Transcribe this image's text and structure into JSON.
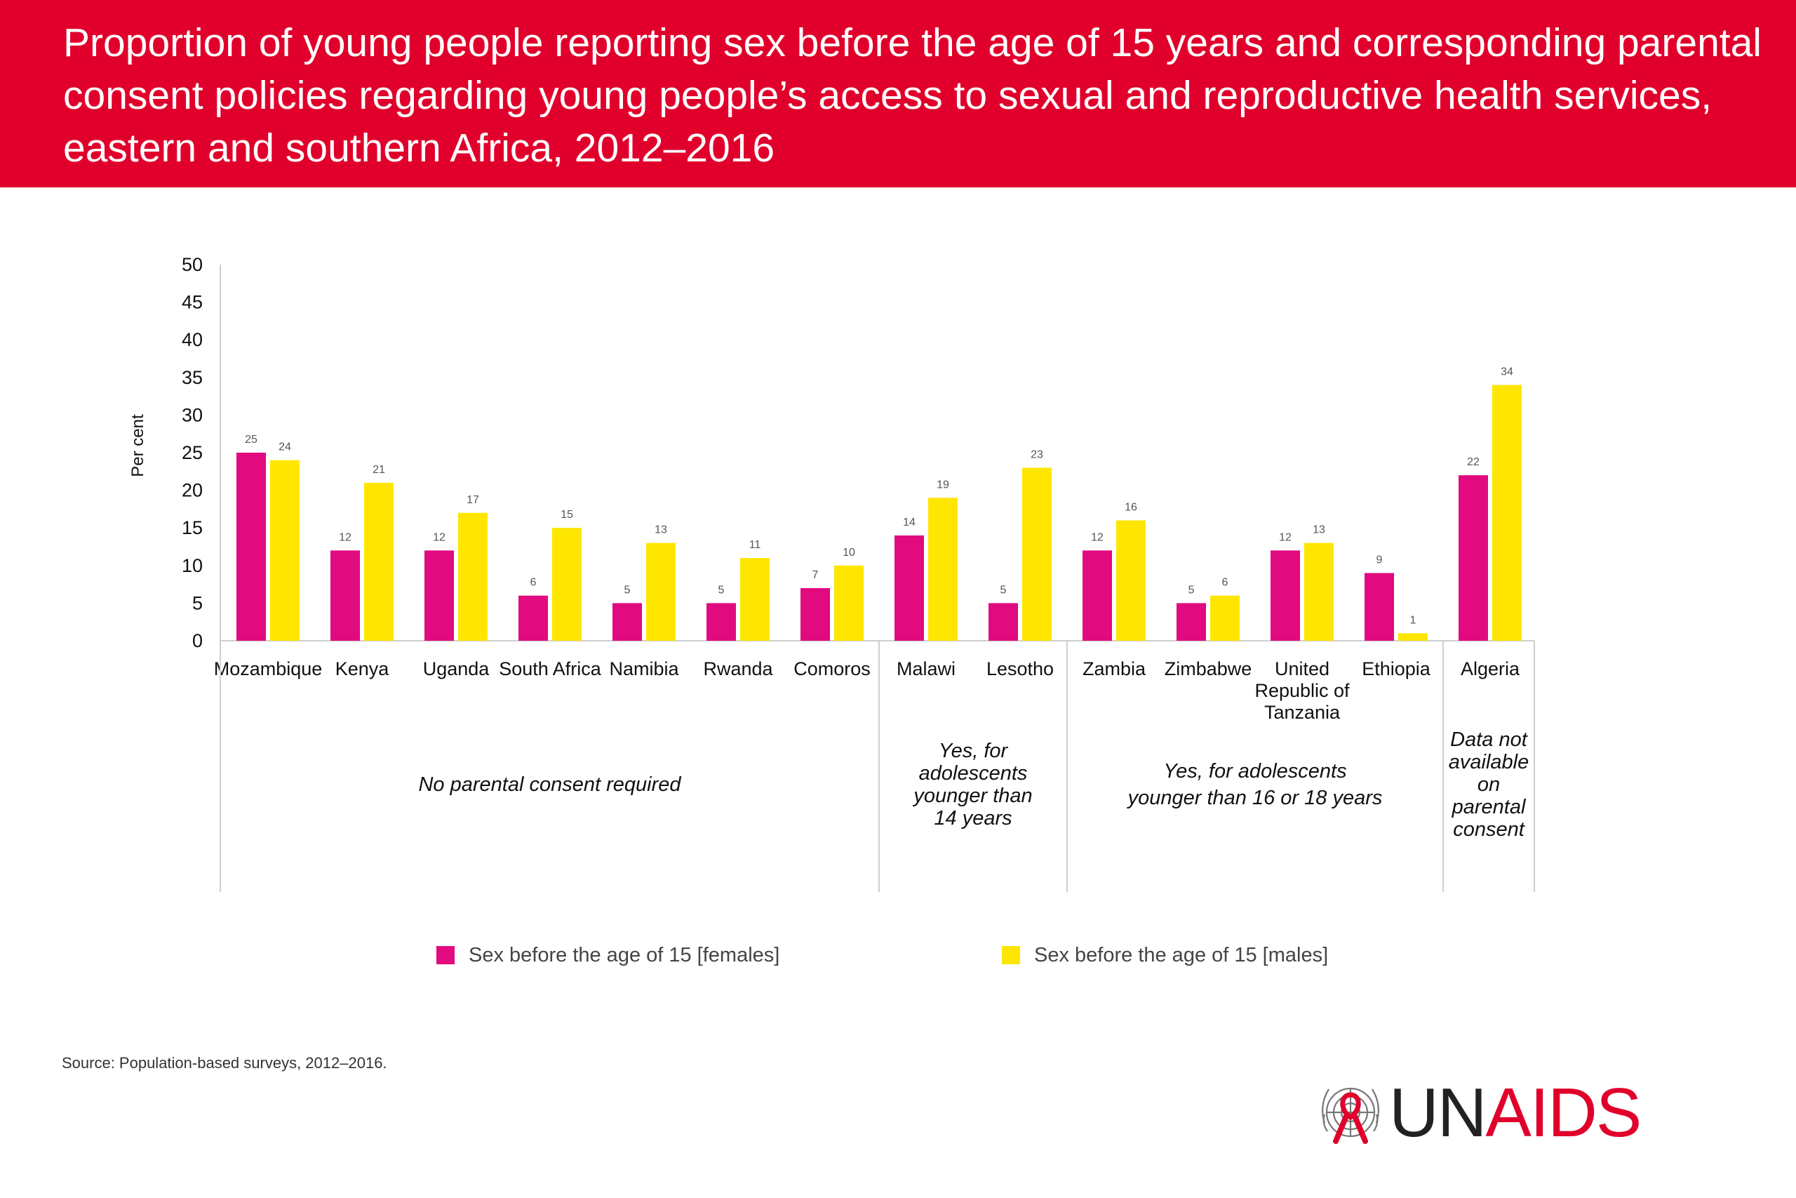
{
  "header": {
    "title": "Proportion of young people reporting sex before the age of 15 years and corresponding parental consent policies regarding young people’s access to sexual and reproductive health services, eastern and southern Africa, 2012–2016"
  },
  "chart_data": {
    "type": "bar",
    "title": "Proportion of young people reporting sex before the age of 15 years and corresponding parental consent policies regarding young people’s access to sexual and reproductive health services, eastern and southern Africa, 2012–2016",
    "ylabel": "Per cent",
    "ylim": [
      0,
      50
    ],
    "yticks": [
      "0",
      "5",
      "10",
      "15",
      "20",
      "25",
      "30",
      "35",
      "40",
      "45",
      "50"
    ],
    "categories": [
      [
        "Mozambique"
      ],
      [
        "Kenya"
      ],
      [
        "Uganda"
      ],
      [
        "South Africa"
      ],
      [
        "Namibia"
      ],
      [
        "Rwanda"
      ],
      [
        "Comoros"
      ],
      [
        "Malawi"
      ],
      [
        "Lesotho"
      ],
      [
        "Zambia"
      ],
      [
        "Zimbabwe"
      ],
      [
        "United",
        "Republic of",
        "Tanzania"
      ],
      [
        "Ethiopia"
      ],
      [
        "Algeria"
      ]
    ],
    "series": [
      {
        "name": "Sex before the age of 15 [females]",
        "color": "#e20a7f",
        "values": [
          25,
          12,
          12,
          6,
          5,
          5,
          7,
          14,
          5,
          12,
          5,
          12,
          9,
          22
        ],
        "labels": [
          "25",
          "12",
          "12",
          "6",
          "5",
          "5",
          "7",
          "14",
          "5",
          "12",
          "5",
          "12",
          "9",
          "22"
        ]
      },
      {
        "name": "Sex before the age of 15 [males]",
        "color": "#ffe600",
        "values": [
          24,
          21,
          17,
          15,
          13,
          11,
          10,
          19,
          23,
          16,
          6,
          13,
          1,
          34
        ],
        "labels": [
          "24",
          "21",
          "17",
          "15",
          "13",
          "11",
          "10",
          "19",
          "23",
          "16",
          "6",
          "13",
          "1",
          "34"
        ]
      }
    ],
    "groups": [
      {
        "label": [
          "No parental consent required"
        ],
        "start": 0,
        "end": 6
      },
      {
        "label": [
          "Yes, for",
          "adolescents",
          "younger than",
          "14  years"
        ],
        "start": 7,
        "end": 8
      },
      {
        "label": [
          "Yes, for adolescents",
          "younger than 16 or 18 years"
        ],
        "start": 9,
        "end": 12
      },
      {
        "label": [
          "Data not",
          "available",
          "on",
          "parental",
          "consent"
        ],
        "start": 13,
        "end": 13
      }
    ],
    "legend": "bottom",
    "grid": false
  },
  "source": "Source: Population-based surveys, 2012–2016.",
  "logo": {
    "un": "UN",
    "aids": "AIDS",
    "emblem": "un-emblem-red-ribbon-icon"
  }
}
